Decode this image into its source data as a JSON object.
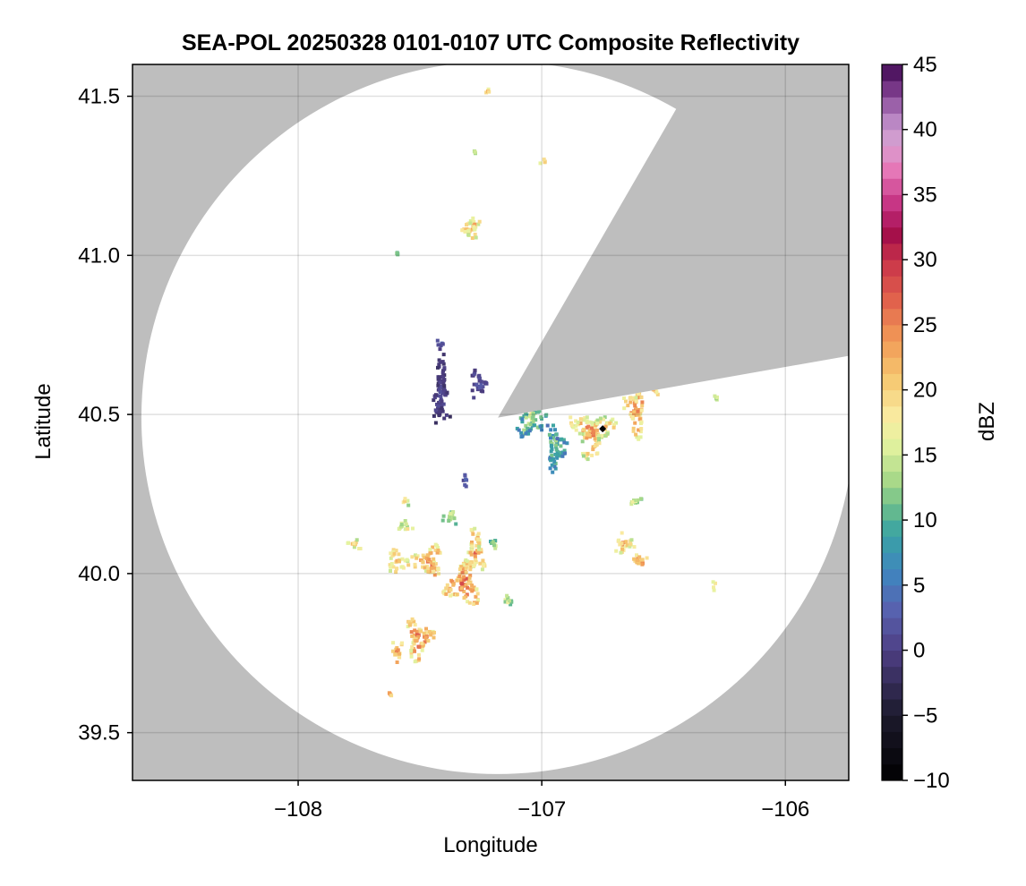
{
  "chart_data": {
    "type": "heatmap",
    "title": "SEA-POL 20250328 0101-0107 UTC Composite Reflectivity",
    "xlabel": "Longitude",
    "ylabel": "Latitude",
    "xlim": [
      -108.68,
      -105.74
    ],
    "ylim": [
      39.35,
      41.6
    ],
    "xticks": [
      -108,
      -107,
      -106
    ],
    "xtick_labels": [
      "−108",
      "−107",
      "−106"
    ],
    "yticks": [
      39.5,
      40.0,
      40.5,
      41.0,
      41.5
    ],
    "ytick_labels": [
      "39.5",
      "40.0",
      "40.5",
      "41.0",
      "41.5"
    ],
    "grid": true,
    "background_color": "#bebebe",
    "coverage_color": "#ffffff",
    "radar_center": {
      "lon": -107.18,
      "lat": 40.49
    },
    "radar_range_deg_lat": 1.12,
    "blocked_sector_deg": [
      30,
      80
    ],
    "marker": {
      "lon": -106.75,
      "lat": 40.455,
      "color": "#000000"
    },
    "colorbar": {
      "label": "dBZ",
      "min": -10,
      "max": 45,
      "step": 1.25,
      "ticks": [
        -10,
        -5,
        0,
        5,
        10,
        15,
        20,
        25,
        30,
        35,
        40,
        45
      ],
      "tick_labels": [
        "−10",
        "−5",
        "0",
        "5",
        "10",
        "15",
        "20",
        "25",
        "30",
        "35",
        "40",
        "45"
      ],
      "colormap_stops": [
        [
          -10,
          "#000000"
        ],
        [
          -5,
          "#1c1a2c"
        ],
        [
          0,
          "#4e3f84"
        ],
        [
          3,
          "#5860ae"
        ],
        [
          6,
          "#3f86bf"
        ],
        [
          9,
          "#3aa3a3"
        ],
        [
          11,
          "#6bbd8c"
        ],
        [
          13,
          "#a6d888"
        ],
        [
          16,
          "#e6f3a0"
        ],
        [
          18,
          "#f9eaa0"
        ],
        [
          21,
          "#f5c66f"
        ],
        [
          24,
          "#f19856"
        ],
        [
          27,
          "#e0604c"
        ],
        [
          30,
          "#c8334a"
        ],
        [
          32,
          "#a30e4a"
        ],
        [
          34,
          "#c22c7d"
        ],
        [
          37,
          "#e67ab9"
        ],
        [
          39,
          "#d7a3d3"
        ],
        [
          41,
          "#b380c0"
        ],
        [
          43,
          "#7b3a8b"
        ],
        [
          45,
          "#3e0751"
        ]
      ]
    },
    "echo_cells": [
      {
        "lon": -107.42,
        "lat": 40.57,
        "rx": 0.04,
        "ry": 0.13,
        "dbz": 0,
        "spread": 3
      },
      {
        "lon": -107.27,
        "lat": 40.6,
        "rx": 0.04,
        "ry": 0.05,
        "dbz": 1,
        "spread": 3
      },
      {
        "lon": -107.42,
        "lat": 40.73,
        "rx": 0.025,
        "ry": 0.02,
        "dbz": 2,
        "spread": 3
      },
      {
        "lon": -107.32,
        "lat": 40.3,
        "rx": 0.015,
        "ry": 0.03,
        "dbz": 3,
        "spread": 3
      },
      {
        "lon": -107.3,
        "lat": 41.09,
        "rx": 0.045,
        "ry": 0.045,
        "dbz": 20,
        "spread": 9
      },
      {
        "lon": -107.23,
        "lat": 41.52,
        "rx": 0.02,
        "ry": 0.01,
        "dbz": 20,
        "spread": 5
      },
      {
        "lon": -107.0,
        "lat": 41.3,
        "rx": 0.015,
        "ry": 0.01,
        "dbz": 20,
        "spread": 5
      },
      {
        "lon": -107.05,
        "lat": 40.5,
        "rx": 0.07,
        "ry": 0.08,
        "dbz": 12,
        "spread": 10
      },
      {
        "lon": -106.95,
        "lat": 40.4,
        "rx": 0.045,
        "ry": 0.08,
        "dbz": 10,
        "spread": 8
      },
      {
        "lon": -106.8,
        "lat": 40.45,
        "rx": 0.1,
        "ry": 0.08,
        "dbz": 20,
        "spread": 10
      },
      {
        "lon": -106.62,
        "lat": 40.52,
        "rx": 0.05,
        "ry": 0.09,
        "dbz": 22,
        "spread": 9
      },
      {
        "lon": -106.55,
        "lat": 40.6,
        "rx": 0.03,
        "ry": 0.05,
        "dbz": 20,
        "spread": 8
      },
      {
        "lon": -106.67,
        "lat": 40.75,
        "rx": 0.04,
        "ry": 0.035,
        "dbz": 18,
        "spread": 8
      },
      {
        "lon": -106.51,
        "lat": 40.7,
        "rx": 0.02,
        "ry": 0.02,
        "dbz": 17,
        "spread": 6
      },
      {
        "lon": -106.67,
        "lat": 40.1,
        "rx": 0.045,
        "ry": 0.035,
        "dbz": 20,
        "spread": 9
      },
      {
        "lon": -106.6,
        "lat": 40.04,
        "rx": 0.035,
        "ry": 0.03,
        "dbz": 22,
        "spread": 8
      },
      {
        "lon": -106.63,
        "lat": 40.23,
        "rx": 0.04,
        "ry": 0.015,
        "dbz": 14,
        "spread": 6
      },
      {
        "lon": -107.47,
        "lat": 40.04,
        "rx": 0.07,
        "ry": 0.06,
        "dbz": 22,
        "spread": 9
      },
      {
        "lon": -107.33,
        "lat": 39.97,
        "rx": 0.08,
        "ry": 0.07,
        "dbz": 23,
        "spread": 9
      },
      {
        "lon": -107.28,
        "lat": 40.07,
        "rx": 0.05,
        "ry": 0.08,
        "dbz": 21,
        "spread": 9
      },
      {
        "lon": -107.6,
        "lat": 40.04,
        "rx": 0.05,
        "ry": 0.04,
        "dbz": 20,
        "spread": 8
      },
      {
        "lon": -107.51,
        "lat": 39.8,
        "rx": 0.06,
        "ry": 0.07,
        "dbz": 23,
        "spread": 9
      },
      {
        "lon": -107.6,
        "lat": 39.76,
        "rx": 0.03,
        "ry": 0.04,
        "dbz": 22,
        "spread": 8
      },
      {
        "lon": -107.77,
        "lat": 40.1,
        "rx": 0.035,
        "ry": 0.02,
        "dbz": 18,
        "spread": 8
      },
      {
        "lon": -107.38,
        "lat": 40.18,
        "rx": 0.04,
        "ry": 0.025,
        "dbz": 14,
        "spread": 6
      },
      {
        "lon": -107.57,
        "lat": 40.15,
        "rx": 0.04,
        "ry": 0.02,
        "dbz": 17,
        "spread": 7
      },
      {
        "lon": -107.57,
        "lat": 40.23,
        "rx": 0.02,
        "ry": 0.02,
        "dbz": 17,
        "spread": 6
      },
      {
        "lon": -107.15,
        "lat": 39.92,
        "rx": 0.02,
        "ry": 0.04,
        "dbz": 15,
        "spread": 6
      },
      {
        "lon": -107.2,
        "lat": 40.1,
        "rx": 0.02,
        "ry": 0.03,
        "dbz": 13,
        "spread": 6
      },
      {
        "lon": -106.3,
        "lat": 39.97,
        "rx": 0.012,
        "ry": 0.02,
        "dbz": 17,
        "spread": 5
      },
      {
        "lon": -106.29,
        "lat": 40.56,
        "rx": 0.012,
        "ry": 0.01,
        "dbz": 15,
        "spread": 5
      },
      {
        "lon": -107.63,
        "lat": 39.63,
        "rx": 0.01,
        "ry": 0.01,
        "dbz": 22,
        "spread": 5
      },
      {
        "lon": -107.6,
        "lat": 41.01,
        "rx": 0.006,
        "ry": 0.006,
        "dbz": 12,
        "spread": 3
      },
      {
        "lon": -107.28,
        "lat": 41.33,
        "rx": 0.006,
        "ry": 0.006,
        "dbz": 15,
        "spread": 3
      }
    ]
  }
}
